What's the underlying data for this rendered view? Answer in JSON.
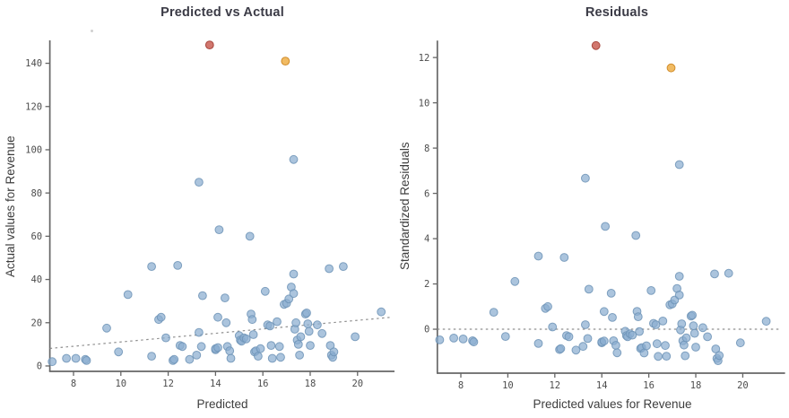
{
  "page": {
    "background": "#ffffff"
  },
  "colors": {
    "point_blue_fill": "#8aadd0",
    "point_blue_edge": "#6d93b6",
    "outlier_red_fill": "#bf4336",
    "outlier_red_edge": "#9e352b",
    "outlier_orange_fill": "#eca127",
    "outlier_orange_edge": "#c97f15",
    "trendline": "#8f8f8f",
    "spine": "#666666",
    "tick_label": "#4d4d4d",
    "title_text": "#3b3b46",
    "axis_label_text": "#3d3d3d"
  },
  "chart_data": [
    {
      "type": "scatter",
      "title": "Predicted vs Actual",
      "xlabel": "Predicted",
      "ylabel": "Actual values for Revenue",
      "xlim": [
        7,
        21.8
      ],
      "ylim": [
        -2.5,
        150.6
      ],
      "xticks": [
        8,
        10,
        12,
        14,
        16,
        18,
        20
      ],
      "yticks": [
        0,
        20,
        40,
        60,
        80,
        100,
        120,
        140
      ],
      "grid": false,
      "legend": "none",
      "trendline": {
        "style": "dashed",
        "x1": 7.0,
        "y1": 8.1,
        "x2": 21.4,
        "y2": 22.5
      },
      "series": [
        {
          "name": "observations",
          "fill": "#8aadd0",
          "edge": "#6d93b6",
          "points": [
            [
              7.1,
              2
            ],
            [
              7.7,
              3.5
            ],
            [
              8.1,
              3.5
            ],
            [
              8.5,
              3
            ],
            [
              8.55,
              2.5
            ],
            [
              9.4,
              17.5
            ],
            [
              9.9,
              6.5
            ],
            [
              10.3,
              33
            ],
            [
              11.3,
              46
            ],
            [
              11.3,
              4.5
            ],
            [
              11.6,
              21.5
            ],
            [
              11.7,
              22.5
            ],
            [
              11.9,
              13
            ],
            [
              12.2,
              2.5
            ],
            [
              12.25,
              3
            ],
            [
              12.4,
              46.5
            ],
            [
              12.5,
              9.5
            ],
            [
              12.6,
              9
            ],
            [
              12.9,
              3
            ],
            [
              13.2,
              5
            ],
            [
              13.3,
              15.5
            ],
            [
              13.3,
              85
            ],
            [
              13.4,
              9
            ],
            [
              13.45,
              32.5
            ],
            [
              14,
              7.5
            ],
            [
              14,
              8
            ],
            [
              14.1,
              8.5
            ],
            [
              14.1,
              22.5
            ],
            [
              14.15,
              63
            ],
            [
              14.4,
              31.5
            ],
            [
              14.45,
              20
            ],
            [
              14.5,
              9
            ],
            [
              14.6,
              7
            ],
            [
              14.65,
              3.5
            ],
            [
              15,
              14
            ],
            [
              15.05,
              12
            ],
            [
              15.1,
              11.5
            ],
            [
              15.2,
              13
            ],
            [
              15.3,
              12.5
            ],
            [
              15.45,
              60
            ],
            [
              15.5,
              24
            ],
            [
              15.55,
              21.5
            ],
            [
              15.6,
              14.5
            ],
            [
              15.65,
              6.5
            ],
            [
              15.7,
              7
            ],
            [
              15.8,
              4.5
            ],
            [
              15.9,
              8
            ],
            [
              16.1,
              34.5
            ],
            [
              16.2,
              19
            ],
            [
              16.3,
              18.5
            ],
            [
              16.35,
              9.5
            ],
            [
              16.4,
              3.5
            ],
            [
              16.6,
              20.5
            ],
            [
              16.7,
              9
            ],
            [
              16.75,
              4
            ],
            [
              16.9,
              28.5
            ],
            [
              17,
              29
            ],
            [
              17.1,
              31
            ],
            [
              17.2,
              36.5
            ],
            [
              17.3,
              42.5
            ],
            [
              17.3,
              33.5
            ],
            [
              17.3,
              95.5
            ],
            [
              17.35,
              17
            ],
            [
              17.4,
              20
            ],
            [
              17.45,
              12
            ],
            [
              17.5,
              10
            ],
            [
              17.55,
              5
            ],
            [
              17.6,
              13.5
            ],
            [
              17.8,
              24
            ],
            [
              17.85,
              24.5
            ],
            [
              17.9,
              19.5
            ],
            [
              17.95,
              16
            ],
            [
              18,
              9.5
            ],
            [
              18.3,
              19
            ],
            [
              18.5,
              15
            ],
            [
              18.8,
              45
            ],
            [
              18.85,
              9.5
            ],
            [
              18.9,
              5
            ],
            [
              18.95,
              4
            ],
            [
              19,
              6.5
            ],
            [
              19.4,
              46
            ],
            [
              19.9,
              13.5
            ],
            [
              21,
              25
            ]
          ]
        },
        {
          "name": "outlier-red",
          "fill": "#bf4336",
          "edge": "#9e352b",
          "points": [
            [
              13.75,
              148.5
            ]
          ]
        },
        {
          "name": "outlier-orange",
          "fill": "#eca127",
          "edge": "#c97f15",
          "points": [
            [
              16.95,
              141
            ]
          ]
        }
      ]
    },
    {
      "type": "scatter",
      "title": "Residuals",
      "xlabel": "Predicted values for Revenue",
      "ylabel": "Standardized Residuals",
      "xlim": [
        7,
        21.8
      ],
      "ylim": [
        -1.94,
        12.75
      ],
      "xticks": [
        8,
        10,
        12,
        14,
        16,
        18,
        20
      ],
      "yticks": [
        0,
        2,
        4,
        6,
        8,
        10,
        12
      ],
      "grid": false,
      "legend": "none",
      "trendline": {
        "style": "dashed",
        "x1": 7.0,
        "y1": 0,
        "x2": 21.6,
        "y2": 0
      },
      "series": [
        {
          "name": "observations",
          "fill": "#8aadd0",
          "edge": "#6d93b6",
          "points": [
            [
              7.1,
              -0.47
            ],
            [
              7.7,
              -0.39
            ],
            [
              8.1,
              -0.43
            ],
            [
              8.5,
              -0.51
            ],
            [
              8.55,
              -0.56
            ],
            [
              9.4,
              0.75
            ],
            [
              9.9,
              -0.32
            ],
            [
              10.3,
              2.11
            ],
            [
              11.3,
              3.23
            ],
            [
              11.3,
              -0.63
            ],
            [
              11.6,
              0.92
            ],
            [
              11.7,
              1.0
            ],
            [
              11.9,
              0.1
            ],
            [
              12.2,
              -0.9
            ],
            [
              12.25,
              -0.86
            ],
            [
              12.4,
              3.17
            ],
            [
              12.5,
              -0.28
            ],
            [
              12.6,
              -0.33
            ],
            [
              12.9,
              -0.92
            ],
            [
              13.2,
              -0.76
            ],
            [
              13.3,
              0.2
            ],
            [
              13.3,
              6.67
            ],
            [
              13.4,
              -0.41
            ],
            [
              13.45,
              1.77
            ],
            [
              14,
              -0.6
            ],
            [
              14,
              -0.56
            ],
            [
              14.1,
              -0.52
            ],
            [
              14.1,
              0.78
            ],
            [
              14.15,
              4.54
            ],
            [
              14.4,
              1.59
            ],
            [
              14.45,
              0.52
            ],
            [
              14.5,
              -0.51
            ],
            [
              14.6,
              -0.71
            ],
            [
              14.65,
              -1.04
            ],
            [
              15,
              -0.09
            ],
            [
              15.05,
              -0.28
            ],
            [
              15.1,
              -0.33
            ],
            [
              15.2,
              -0.2
            ],
            [
              15.3,
              -0.26
            ],
            [
              15.45,
              4.14
            ],
            [
              15.5,
              0.79
            ],
            [
              15.55,
              0.55
            ],
            [
              15.6,
              -0.1
            ],
            [
              15.65,
              -0.85
            ],
            [
              15.7,
              -0.81
            ],
            [
              15.8,
              -1.05
            ],
            [
              15.9,
              -0.73
            ],
            [
              16.1,
              1.71
            ],
            [
              16.2,
              0.26
            ],
            [
              16.3,
              0.2
            ],
            [
              16.35,
              -0.64
            ],
            [
              16.4,
              -1.2
            ],
            [
              16.6,
              0.36
            ],
            [
              16.7,
              -0.72
            ],
            [
              16.75,
              -1.19
            ],
            [
              16.9,
              1.08
            ],
            [
              17,
              1.12
            ],
            [
              17.1,
              1.29
            ],
            [
              17.2,
              1.8
            ],
            [
              17.3,
              2.34
            ],
            [
              17.3,
              1.51
            ],
            [
              17.3,
              7.27
            ],
            [
              17.35,
              -0.03
            ],
            [
              17.4,
              0.24
            ],
            [
              17.45,
              -0.51
            ],
            [
              17.5,
              -0.7
            ],
            [
              17.55,
              -1.17
            ],
            [
              17.6,
              -0.38
            ],
            [
              17.8,
              0.58
            ],
            [
              17.85,
              0.62
            ],
            [
              17.9,
              0.15
            ],
            [
              17.95,
              -0.18
            ],
            [
              18,
              -0.79
            ],
            [
              18.3,
              0.07
            ],
            [
              18.5,
              -0.33
            ],
            [
              18.8,
              2.44
            ],
            [
              18.85,
              -0.87
            ],
            [
              18.9,
              -1.29
            ],
            [
              18.95,
              -1.39
            ],
            [
              19,
              -1.16
            ],
            [
              19.4,
              2.47
            ],
            [
              19.9,
              -0.6
            ],
            [
              21,
              0.35
            ]
          ]
        },
        {
          "name": "outlier-red",
          "fill": "#bf4336",
          "edge": "#9e352b",
          "points": [
            [
              13.75,
              12.53
            ]
          ]
        },
        {
          "name": "outlier-orange",
          "fill": "#eca127",
          "edge": "#c97f15",
          "points": [
            [
              16.95,
              11.54
            ]
          ]
        }
      ]
    }
  ]
}
